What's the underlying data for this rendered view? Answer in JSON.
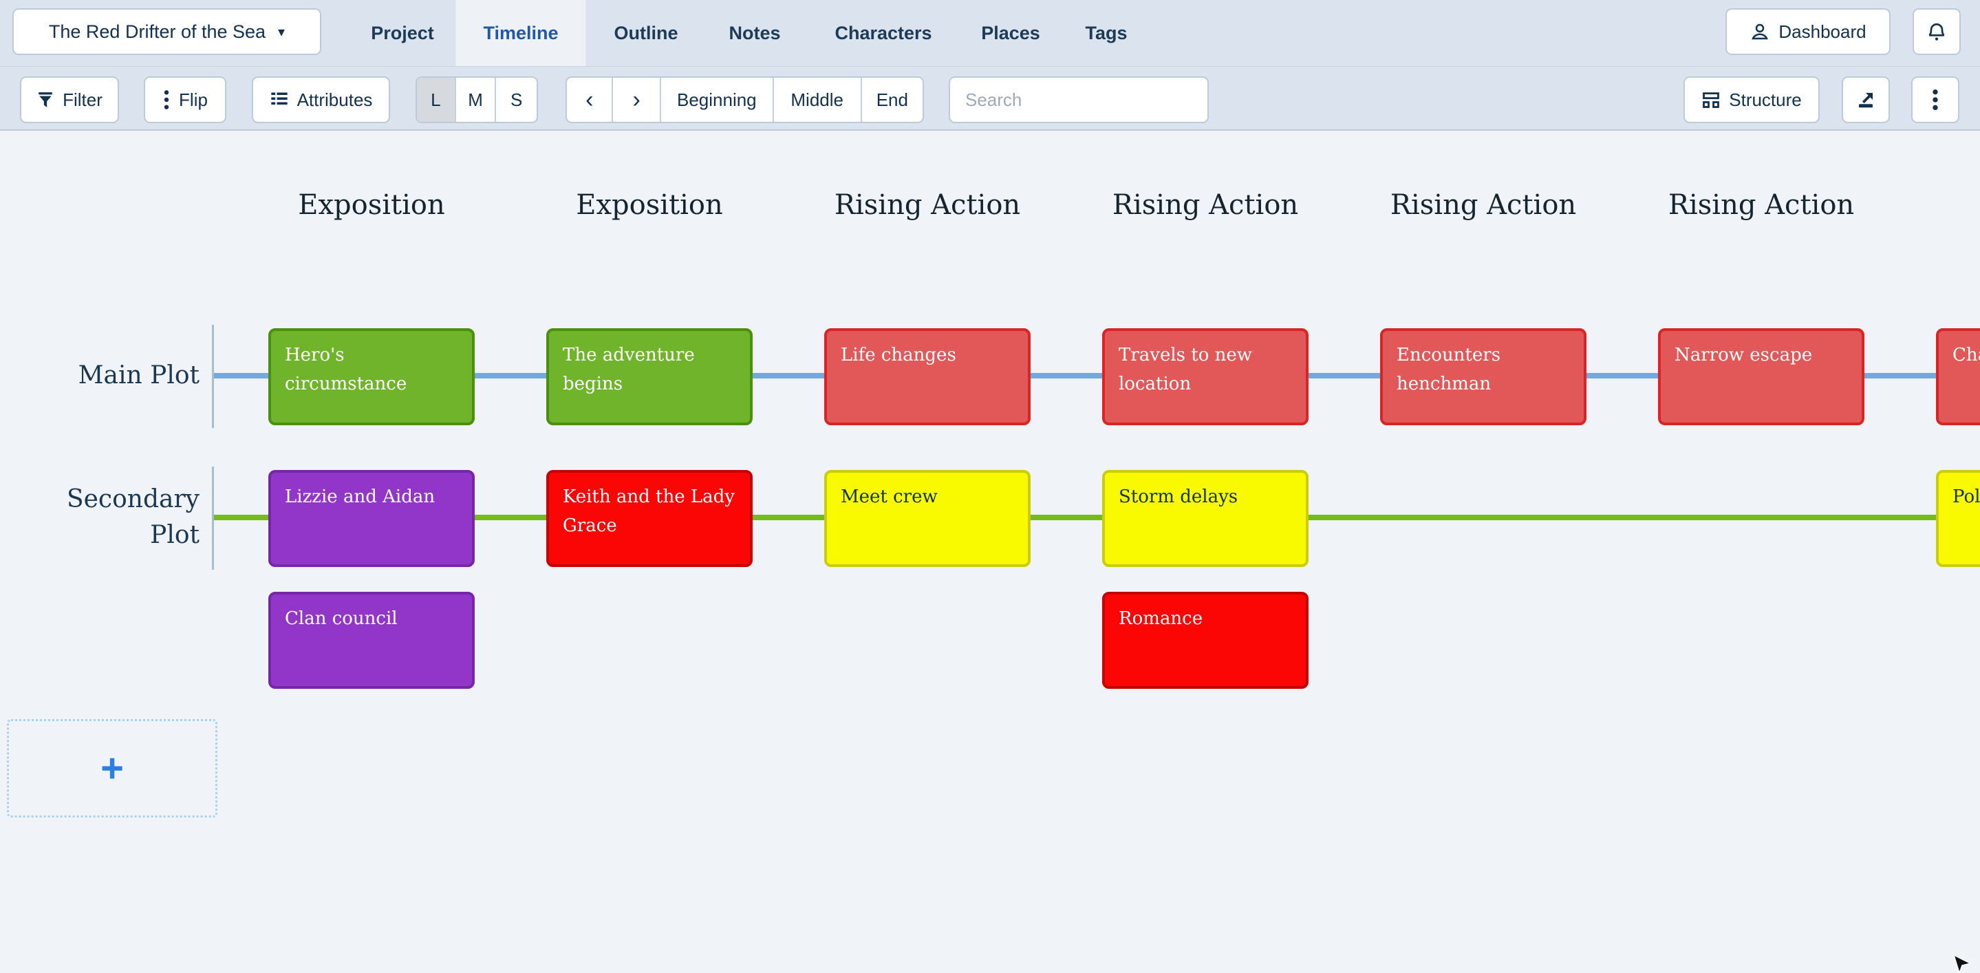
{
  "header": {
    "project_selector": "The Red Drifter of the Sea",
    "caret": "▾",
    "tabs": [
      {
        "label": "Project",
        "active": false
      },
      {
        "label": "Timeline",
        "active": true
      },
      {
        "label": "Outline",
        "active": false
      },
      {
        "label": "Notes",
        "active": false
      },
      {
        "label": "Characters",
        "active": false
      },
      {
        "label": "Places",
        "active": false
      },
      {
        "label": "Tags",
        "active": false
      }
    ],
    "dashboard_label": "Dashboard"
  },
  "toolbar": {
    "filter_label": "Filter",
    "flip_label": "Flip",
    "attributes_label": "Attributes",
    "size_options": [
      "L",
      "M",
      "S"
    ],
    "size_active": "L",
    "back_arrow": "‹",
    "forward_arrow": "›",
    "jump_options": [
      "Beginning",
      "Middle",
      "End"
    ],
    "search_placeholder": "Search",
    "structure_label": "Structure"
  },
  "timeline": {
    "columns": [
      "Exposition",
      "Exposition",
      "Rising Action",
      "Rising Action",
      "Rising Action",
      "Rising Action"
    ],
    "rows": [
      {
        "id": "main",
        "label": "Main Plot",
        "line_color": "#73a9dd"
      },
      {
        "id": "secondary",
        "label": "Secondary Plot",
        "line_color": "#77ba1e"
      }
    ],
    "cards": [
      {
        "row": "main",
        "col": 1,
        "color": "green",
        "label": "Hero's circumstance"
      },
      {
        "row": "main",
        "col": 2,
        "color": "green",
        "label": "The adventure begins"
      },
      {
        "row": "main",
        "col": 3,
        "color": "salmon",
        "label": "Life changes"
      },
      {
        "row": "main",
        "col": 4,
        "color": "salmon",
        "label": "Travels to new location"
      },
      {
        "row": "main",
        "col": 5,
        "color": "salmon",
        "label": "Encounters henchman"
      },
      {
        "row": "main",
        "col": 6,
        "color": "salmon",
        "label": "Narrow escape"
      },
      {
        "row": "main",
        "col": 7,
        "color": "salmon",
        "label": "Cha"
      },
      {
        "row": "secondary",
        "col": 1,
        "color": "purple",
        "label": "Lizzie and Aidan"
      },
      {
        "row": "secondary",
        "col": 2,
        "color": "red",
        "label": "Keith and the Lady Grace"
      },
      {
        "row": "secondary",
        "col": 3,
        "color": "yellow",
        "label": "Meet crew"
      },
      {
        "row": "secondary",
        "col": 4,
        "color": "yellow",
        "label": "Storm delays"
      },
      {
        "row": "secondary",
        "col": 7,
        "color": "yellow",
        "label": "Poli"
      },
      {
        "row": "extra",
        "col": 1,
        "color": "purple",
        "label": "Clan council"
      },
      {
        "row": "extra",
        "col": 4,
        "color": "red",
        "label": "Romance"
      }
    ],
    "add_button": "+"
  },
  "colors": {
    "green": {
      "fill": "#6fb42a",
      "border": "#4a8f0d",
      "text": "#ffffff"
    },
    "salmon": {
      "fill": "#e25757",
      "border": "#da2525",
      "text": "#ffffff"
    },
    "red": {
      "fill": "#fb0505",
      "border": "#c40404",
      "text": "#ffffff"
    },
    "purple": {
      "fill": "#9136c9",
      "border": "#7527a8",
      "text": "#ffffff"
    },
    "yellow": {
      "fill": "#f9f900",
      "border": "#c9cd0e",
      "text": "#14324f"
    },
    "accent_blue": "#2e7ee2",
    "chrome_bg": "#dbe3ee",
    "canvas_bg": "#f0f4f8"
  }
}
